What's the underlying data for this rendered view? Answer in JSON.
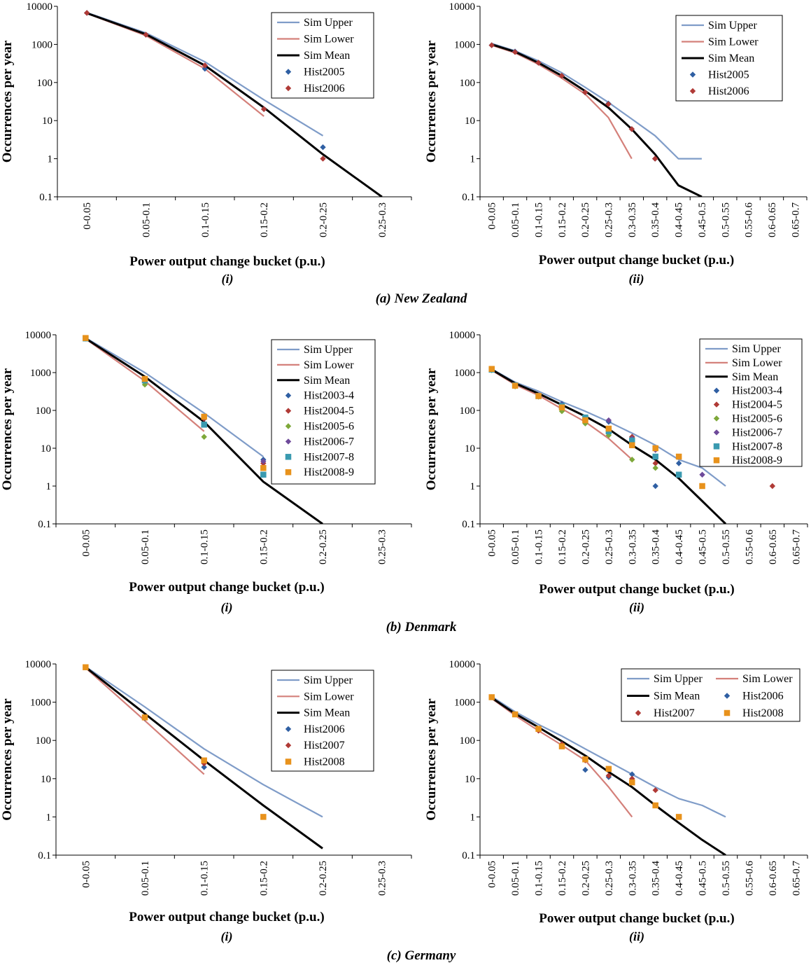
{
  "figure": {
    "captions": [
      "(a) New Zealand",
      "(b) Denmark",
      "(c) Germany"
    ]
  },
  "chart_data": [
    {
      "type": "line",
      "subcaption": "(i)",
      "xlabel": "Power output change bucket (p.u.)",
      "ylabel": "Occurrences per year",
      "yscale": "log",
      "ylim": [
        0.1,
        10000
      ],
      "yticks": [
        "0.1",
        "1",
        "10",
        "100",
        "1000",
        "10000"
      ],
      "categories": [
        "0-0.05",
        "0.05-0.1",
        "0.1-0.15",
        "0.15-0.2",
        "0.2-0.25",
        "0.25-0.3"
      ],
      "legend_position": "top-right",
      "series": [
        {
          "name": "Sim Upper",
          "style": "line",
          "color": "#7f9cc8",
          "values": [
            6800,
            2000,
            350,
            35,
            4,
            null
          ]
        },
        {
          "name": "Sim Lower",
          "style": "line",
          "color": "#d4807a",
          "values": [
            6500,
            1700,
            230,
            13,
            null,
            null
          ]
        },
        {
          "name": "Sim Mean",
          "style": "line",
          "color": "#000000",
          "values": [
            6600,
            1850,
            280,
            22,
            1.3,
            0.1
          ]
        },
        {
          "name": "Hist2005",
          "style": "diamond",
          "color": "#2f5fa3",
          "values": [
            6700,
            1800,
            230,
            20,
            2,
            null
          ]
        },
        {
          "name": "Hist2006",
          "style": "diamond",
          "color": "#b03a36",
          "values": [
            6700,
            1800,
            280,
            20,
            1,
            null
          ]
        }
      ]
    },
    {
      "type": "line",
      "subcaption": "(ii)",
      "xlabel": "Power output change bucket (p.u.)",
      "ylabel": "Occurrences per year",
      "yscale": "log",
      "ylim": [
        0.1,
        10000
      ],
      "yticks": [
        "0.1",
        "1",
        "10",
        "100",
        "1000",
        "10000"
      ],
      "categories": [
        "0-0.05",
        "0.05-0.1",
        "0.1-0.15",
        "0.15-0.2",
        "0.2-0.25",
        "0.25-0.3",
        "0.3-0.35",
        "0.35-0.4",
        "0.4-0.45",
        "0.45-0.5",
        "0.5-0.55",
        "0.55-0.6",
        "0.6-0.65",
        "0.65-0.7"
      ],
      "legend_position": "top-right",
      "series": [
        {
          "name": "Sim Upper",
          "style": "line",
          "color": "#7f9cc8",
          "values": [
            1050,
            680,
            370,
            180,
            75,
            30,
            11,
            4,
            1,
            1,
            null,
            null,
            null,
            null
          ]
        },
        {
          "name": "Sim Lower",
          "style": "line",
          "color": "#d4807a",
          "values": [
            950,
            600,
            300,
            130,
            50,
            12,
            1,
            null,
            null,
            null,
            null,
            null,
            null,
            null
          ]
        },
        {
          "name": "Sim Mean",
          "style": "line",
          "color": "#000000",
          "values": [
            1000,
            640,
            330,
            150,
            60,
            22,
            6,
            1.3,
            0.2,
            0.1,
            null,
            null,
            null,
            null
          ]
        },
        {
          "name": "Hist2005",
          "style": "diamond",
          "color": "#2f5fa3",
          "values": [
            950,
            650,
            330,
            150,
            55,
            28,
            6,
            1,
            null,
            null,
            null,
            null,
            null,
            null
          ]
        },
        {
          "name": "Hist2006",
          "style": "diamond",
          "color": "#b03a36",
          "values": [
            950,
            630,
            330,
            150,
            55,
            27,
            6,
            1,
            null,
            null,
            null,
            null,
            null,
            null
          ]
        }
      ]
    },
    {
      "type": "line",
      "subcaption": "(i)",
      "xlabel": "Power output change bucket (p.u.)",
      "ylabel": "Occurrences per year",
      "yscale": "log",
      "ylim": [
        0.1,
        10000
      ],
      "yticks": [
        "0.1",
        "1",
        "10",
        "100",
        "1000",
        "10000"
      ],
      "categories": [
        "0-0.05",
        "0.05-0.1",
        "0.1-0.15",
        "0.15-0.2",
        "0.2-0.25",
        "0.25-0.3"
      ],
      "legend_position": "top-right",
      "series": [
        {
          "name": "Sim Upper",
          "style": "line",
          "color": "#7f9cc8",
          "values": [
            8300,
            1000,
            85,
            6,
            null,
            null
          ]
        },
        {
          "name": "Sim Lower",
          "style": "line",
          "color": "#d4807a",
          "values": [
            7800,
            600,
            28,
            null,
            null,
            null
          ]
        },
        {
          "name": "Sim Mean",
          "style": "line",
          "color": "#000000",
          "values": [
            8000,
            780,
            50,
            1.3,
            0.1,
            null
          ]
        },
        {
          "name": "Hist2003-4",
          "style": "diamond",
          "color": "#2f5fa3",
          "values": [
            8000,
            650,
            60,
            5,
            null,
            null
          ]
        },
        {
          "name": "Hist2004-5",
          "style": "diamond",
          "color": "#b03a36",
          "values": [
            8000,
            640,
            60,
            4,
            null,
            null
          ]
        },
        {
          "name": "Hist2005-6",
          "style": "diamond",
          "color": "#7ea83a",
          "values": [
            7900,
            480,
            20,
            3,
            null,
            null
          ]
        },
        {
          "name": "Hist2006-7",
          "style": "diamond",
          "color": "#6e4a9a",
          "values": [
            8000,
            640,
            65,
            4.5,
            null,
            null
          ]
        },
        {
          "name": "Hist2007-8",
          "style": "square",
          "color": "#3a9ab0",
          "values": [
            8000,
            620,
            42,
            2,
            null,
            null
          ]
        },
        {
          "name": "Hist2008-9",
          "style": "square",
          "color": "#e8921c",
          "values": [
            8200,
            680,
            68,
            3,
            null,
            null
          ]
        }
      ]
    },
    {
      "type": "line",
      "subcaption": "(ii)",
      "xlabel": "Power output change bucket (p.u.)",
      "ylabel": "Occurrences per year",
      "yscale": "log",
      "ylim": [
        0.1,
        10000
      ],
      "yticks": [
        "0.1",
        "1",
        "10",
        "100",
        "1000",
        "10000"
      ],
      "categories": [
        "0-0.05",
        "0.05-0.1",
        "0.1-0.15",
        "0.15-0.2",
        "0.2-0.25",
        "0.25-0.3",
        "0.3-0.35",
        "0.35-0.4",
        "0.4-0.45",
        "0.45-0.5",
        "0.5-0.55",
        "0.55-0.6",
        "0.6-0.65",
        "0.65-0.7"
      ],
      "legend_position": "top-right",
      "series": [
        {
          "name": "Sim Upper",
          "style": "line",
          "color": "#7f9cc8",
          "values": [
            1250,
            560,
            320,
            170,
            95,
            50,
            25,
            12,
            5,
            3,
            1,
            null,
            null,
            null
          ]
        },
        {
          "name": "Sim Lower",
          "style": "line",
          "color": "#d4807a",
          "values": [
            1150,
            480,
            250,
            110,
            50,
            18,
            5,
            null,
            null,
            null,
            null,
            null,
            null,
            null
          ]
        },
        {
          "name": "Sim Mean",
          "style": "line",
          "color": "#000000",
          "values": [
            1200,
            520,
            280,
            140,
            70,
            32,
            12,
            5,
            1.6,
            0.4,
            0.1,
            null,
            null,
            null
          ]
        },
        {
          "name": "Hist2003-4",
          "style": "diamond",
          "color": "#2f5fa3",
          "values": [
            1200,
            460,
            250,
            150,
            60,
            50,
            20,
            1,
            4,
            null,
            null,
            null,
            null,
            null
          ]
        },
        {
          "name": "Hist2004-5",
          "style": "diamond",
          "color": "#b03a36",
          "values": [
            1200,
            450,
            240,
            110,
            50,
            30,
            20,
            4,
            null,
            null,
            null,
            null,
            1,
            null
          ]
        },
        {
          "name": "Hist2005-6",
          "style": "diamond",
          "color": "#7ea83a",
          "values": [
            1150,
            430,
            230,
            95,
            45,
            22,
            5,
            3,
            null,
            null,
            null,
            null,
            null,
            null
          ]
        },
        {
          "name": "Hist2006-7",
          "style": "diamond",
          "color": "#6e4a9a",
          "values": [
            1200,
            450,
            250,
            140,
            55,
            55,
            18,
            9,
            null,
            2,
            null,
            null,
            null,
            null
          ]
        },
        {
          "name": "Hist2007-8",
          "style": "square",
          "color": "#3a9ab0",
          "values": [
            1200,
            460,
            240,
            130,
            65,
            28,
            16,
            6,
            2,
            null,
            null,
            null,
            null,
            null
          ]
        },
        {
          "name": "Hist2008-9",
          "style": "square",
          "color": "#e8921c",
          "values": [
            1250,
            450,
            240,
            120,
            55,
            33,
            12,
            10,
            6,
            1,
            null,
            null,
            null,
            null
          ]
        }
      ]
    },
    {
      "type": "line",
      "subcaption": "(i)",
      "xlabel": "Power output change bucket (p.u.)",
      "ylabel": "Occurrences per year",
      "yscale": "log",
      "ylim": [
        0.1,
        10000
      ],
      "yticks": [
        "0.1",
        "1",
        "10",
        "100",
        "1000",
        "10000"
      ],
      "categories": [
        "0-0.05",
        "0.05-0.1",
        "0.1-0.15",
        "0.15-0.2",
        "0.2-0.25",
        "0.25-0.3"
      ],
      "legend_position": "top-right",
      "series": [
        {
          "name": "Sim Upper",
          "style": "line",
          "color": "#7f9cc8",
          "values": [
            8500,
            750,
            60,
            7,
            1,
            null
          ]
        },
        {
          "name": "Sim Lower",
          "style": "line",
          "color": "#d4807a",
          "values": [
            7900,
            330,
            13,
            null,
            null,
            null
          ]
        },
        {
          "name": "Sim Mean",
          "style": "line",
          "color": "#000000",
          "values": [
            8200,
            500,
            30,
            2,
            0.15,
            null
          ]
        },
        {
          "name": "Hist2006",
          "style": "diamond",
          "color": "#2f5fa3",
          "values": [
            8200,
            380,
            20,
            null,
            null,
            null
          ]
        },
        {
          "name": "Hist2007",
          "style": "diamond",
          "color": "#b03a36",
          "values": [
            8200,
            390,
            25,
            null,
            null,
            null
          ]
        },
        {
          "name": "Hist2008",
          "style": "square",
          "color": "#e8921c",
          "values": [
            8200,
            400,
            30,
            1,
            null,
            null
          ]
        }
      ]
    },
    {
      "type": "line",
      "subcaption": "(ii)",
      "xlabel": "Power output change bucket (p.u.)",
      "ylabel": "Occurrences per year",
      "yscale": "log",
      "ylim": [
        0.1,
        10000
      ],
      "yticks": [
        "0.1",
        "1",
        "10",
        "100",
        "1000",
        "10000"
      ],
      "categories": [
        "0-0.05",
        "0.05-0.1",
        "0.1-0.15",
        "0.15-0.2",
        "0.2-0.25",
        "0.25-0.3",
        "0.3-0.35",
        "0.35-0.4",
        "0.4-0.45",
        "0.45-0.5",
        "0.5-0.55",
        "0.55-0.6",
        "0.6-0.65",
        "0.65-0.7"
      ],
      "legend_position": "top-right",
      "series": [
        {
          "name": "Sim Upper",
          "style": "line",
          "color": "#7f9cc8",
          "values": [
            1400,
            560,
            260,
            130,
            60,
            28,
            13,
            6,
            3,
            2,
            1,
            null,
            null,
            null
          ]
        },
        {
          "name": "Sim Lower",
          "style": "line",
          "color": "#d4807a",
          "values": [
            1250,
            450,
            180,
            75,
            30,
            6,
            1,
            null,
            null,
            null,
            null,
            null,
            null,
            null
          ]
        },
        {
          "name": "Sim Mean",
          "style": "line",
          "color": "#000000",
          "values": [
            1300,
            500,
            220,
            95,
            40,
            15,
            6,
            2,
            0.7,
            0.25,
            0.1,
            null,
            null,
            null
          ]
        },
        {
          "name": "Hist2006",
          "style": "diamond",
          "color": "#2f5fa3",
          "values": [
            1350,
            480,
            190,
            80,
            17,
            11,
            13,
            null,
            null,
            null,
            null,
            null,
            null,
            null
          ]
        },
        {
          "name": "Hist2007",
          "style": "diamond",
          "color": "#b03a36",
          "values": [
            1350,
            480,
            180,
            80,
            30,
            12,
            10,
            5,
            null,
            null,
            null,
            null,
            null,
            null
          ]
        },
        {
          "name": "Hist2008",
          "style": "square",
          "color": "#e8921c",
          "values": [
            1350,
            480,
            200,
            70,
            32,
            18,
            8,
            2,
            1,
            null,
            null,
            null,
            null,
            null
          ]
        }
      ]
    }
  ]
}
